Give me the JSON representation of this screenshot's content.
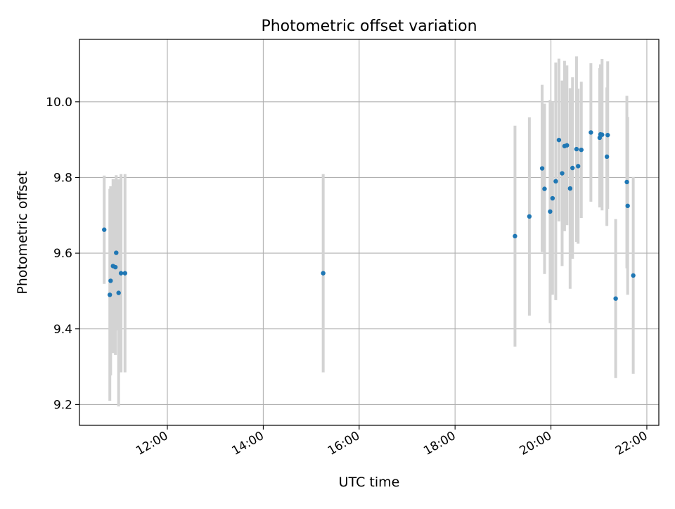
{
  "chart_data": {
    "type": "scatter",
    "title": "Photometric offset variation",
    "xlabel": "UTC time",
    "ylabel": "Photometric offset",
    "x_axis_kind": "time",
    "xlim": [
      "10:10",
      "22:15"
    ],
    "ylim": [
      9.145,
      10.165
    ],
    "xticks": [
      "12:00",
      "14:00",
      "16:00",
      "18:00",
      "20:00",
      "22:00"
    ],
    "yticks": [
      "9.2",
      "9.4",
      "9.6",
      "9.8",
      "10.0"
    ],
    "grid": true,
    "legend": "none",
    "colors": {
      "point": "#1f77b4",
      "errorbar": "#d3d3d3",
      "grid": "#b0b0b0"
    },
    "series": [
      {
        "points": [
          {
            "x": "10:41",
            "y": 9.662,
            "err": 0.143
          },
          {
            "x": "10:48",
            "y": 9.49,
            "err": 0.28
          },
          {
            "x": "10:49",
            "y": 9.527,
            "err": 0.25
          },
          {
            "x": "10:52",
            "y": 9.566,
            "err": 0.23
          },
          {
            "x": "10:55",
            "y": 9.563,
            "err": 0.232
          },
          {
            "x": "10:56",
            "y": 9.601,
            "err": 0.205
          },
          {
            "x": "10:59",
            "y": 9.495,
            "err": 0.3
          },
          {
            "x": "11:02",
            "y": 9.547,
            "err": 0.262
          },
          {
            "x": "11:07",
            "y": 9.547,
            "err": 0.262
          },
          {
            "x": "15:15",
            "y": 9.547,
            "err": 0.262
          },
          {
            "x": "19:15",
            "y": 9.645,
            "err": 0.292
          },
          {
            "x": "19:33",
            "y": 9.697,
            "err": 0.262
          },
          {
            "x": "19:49",
            "y": 9.824,
            "err": 0.221
          },
          {
            "x": "19:52",
            "y": 9.77,
            "err": 0.225
          },
          {
            "x": "19:59",
            "y": 9.71,
            "err": 0.295
          },
          {
            "x": "20:02",
            "y": 9.745,
            "err": 0.255
          },
          {
            "x": "20:06",
            "y": 9.79,
            "err": 0.314
          },
          {
            "x": "20:10",
            "y": 9.899,
            "err": 0.215
          },
          {
            "x": "20:14",
            "y": 9.811,
            "err": 0.245
          },
          {
            "x": "20:17",
            "y": 9.883,
            "err": 0.225
          },
          {
            "x": "20:20",
            "y": 9.885,
            "err": 0.211
          },
          {
            "x": "20:24",
            "y": 9.771,
            "err": 0.265
          },
          {
            "x": "20:27",
            "y": 9.825,
            "err": 0.24
          },
          {
            "x": "20:32",
            "y": 9.875,
            "err": 0.245
          },
          {
            "x": "20:34",
            "y": 9.83,
            "err": 0.205
          },
          {
            "x": "20:38",
            "y": 9.873,
            "err": 0.18
          },
          {
            "x": "20:50",
            "y": 9.919,
            "err": 0.183
          },
          {
            "x": "21:01",
            "y": 9.905,
            "err": 0.184
          },
          {
            "x": "21:02",
            "y": 9.914,
            "err": 0.185
          },
          {
            "x": "21:04",
            "y": 9.913,
            "err": 0.2
          },
          {
            "x": "21:10",
            "y": 9.855,
            "err": 0.183
          },
          {
            "x": "21:11",
            "y": 9.912,
            "err": 0.195
          },
          {
            "x": "21:21",
            "y": 9.48,
            "err": 0.21
          },
          {
            "x": "21:35",
            "y": 9.788,
            "err": 0.228
          },
          {
            "x": "21:36",
            "y": 9.725,
            "err": 0.235
          },
          {
            "x": "21:43",
            "y": 9.541,
            "err": 0.26
          }
        ]
      }
    ]
  }
}
